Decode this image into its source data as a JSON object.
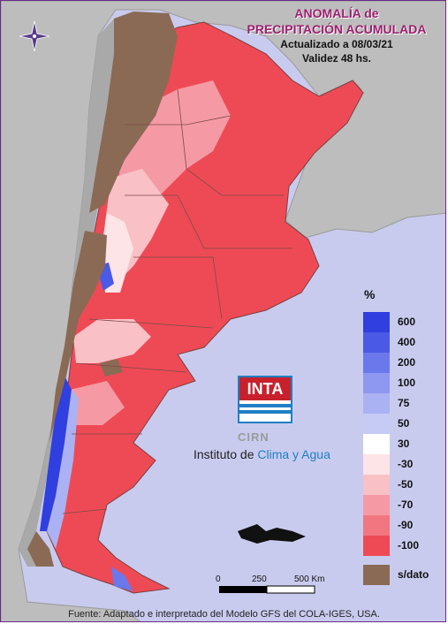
{
  "title": {
    "line1": "ANOMALÍA de",
    "line2": "PRECIPITACIÓN ACUMULADA"
  },
  "updated": "Actualizado a 08/03/21",
  "validity": "Validez 48 hs.",
  "legend": {
    "unit": "%",
    "blue_levels": [
      {
        "label": "600",
        "color": "#2f3fe0"
      },
      {
        "label": "400",
        "color": "#4a5ae6"
      },
      {
        "label": "200",
        "color": "#6a78ec"
      },
      {
        "label": "100",
        "color": "#8e98f0"
      },
      {
        "label": "75",
        "color": "#aab2f3"
      },
      {
        "label": "50",
        "color": "#c6cbf6"
      }
    ],
    "neutral_label": "30",
    "red_levels": [
      {
        "label": "-30",
        "color": "#fde4e6"
      },
      {
        "label": "-50",
        "color": "#f9c0c6"
      },
      {
        "label": "-70",
        "color": "#f59aa4"
      },
      {
        "label": "-90",
        "color": "#f17680"
      },
      {
        "label": "-100",
        "color": "#ee4a55"
      }
    ],
    "no_data_label": "s/dato"
  },
  "logo": {
    "text": "INTA",
    "sub": "CIRN",
    "institute_a": "Instituto de ",
    "institute_b": "Clima y Agua"
  },
  "scale": {
    "labels": [
      "0",
      "250",
      "500 Km"
    ]
  },
  "footer": "Fuente: Adaptado e interpretado del Modelo GFS del COLA-IGES, USA.",
  "colors": {
    "ocean": "#c9cbee",
    "land_gray": "#bdbdbd",
    "no_data": "#8a6a55",
    "title": "#9b1f6e"
  }
}
